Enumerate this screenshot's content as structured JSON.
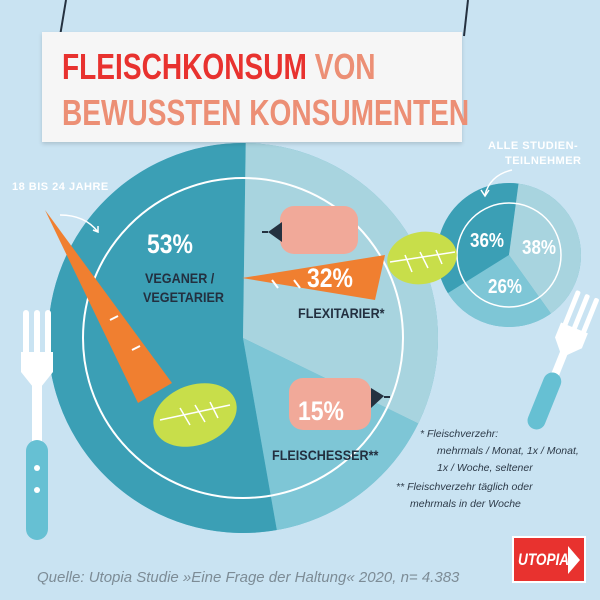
{
  "title": {
    "line1_main": "FLEISCHKONSUM",
    "line1_accent": "VON",
    "line2": "BEWUSSTEN KONSUMENTEN"
  },
  "colors": {
    "background": "#c9e3f2",
    "plate_rim": "#58b3c9",
    "red": "#e8322f",
    "salmon": "#ec8f75",
    "carrot": "#f07f30",
    "leaf": "#c8de4a",
    "dark_text": "#233040"
  },
  "labels": {
    "age_group": "18 BIS 24 JAHRE",
    "all_participants_1": "ALLE STUDIEN-",
    "all_participants_2": "TEILNEHMER"
  },
  "notes": {
    "n1a": "* Fleischverzehr:",
    "n1b": "mehrmals / Monat, 1x / Monat,",
    "n1c": "1x / Woche, seltener",
    "n2a": "** Fleischverzehr täglich oder",
    "n2b": "mehrmals in der Woche"
  },
  "source": "Quelle: Utopia Studie »Eine Frage der Haltung« 2020, n= 4.383",
  "logo": {
    "text": "UTOPIA"
  },
  "icons": [
    "carrot-icon",
    "sausage-icon",
    "fork-icon",
    "knife-icon",
    "leaf-icon"
  ],
  "chart_data": [
    {
      "type": "pie",
      "categories": [
        "VEGANER / VEGETARIER",
        "FLEXITARIER*",
        "FLEISCHESSER**"
      ],
      "values": [
        53,
        32,
        15
      ],
      "value_labels": [
        "53%",
        "32%",
        "15%"
      ],
      "colors": [
        "#3b9fb5",
        "#a8d4df",
        "#7ec6d6"
      ]
    },
    {
      "type": "pie",
      "values": [
        36,
        38,
        26
      ],
      "value_labels": [
        "36%",
        "38%",
        "26%"
      ],
      "colors": [
        "#3b9fb5",
        "#a8d4df",
        "#7ec6d6"
      ]
    }
  ]
}
